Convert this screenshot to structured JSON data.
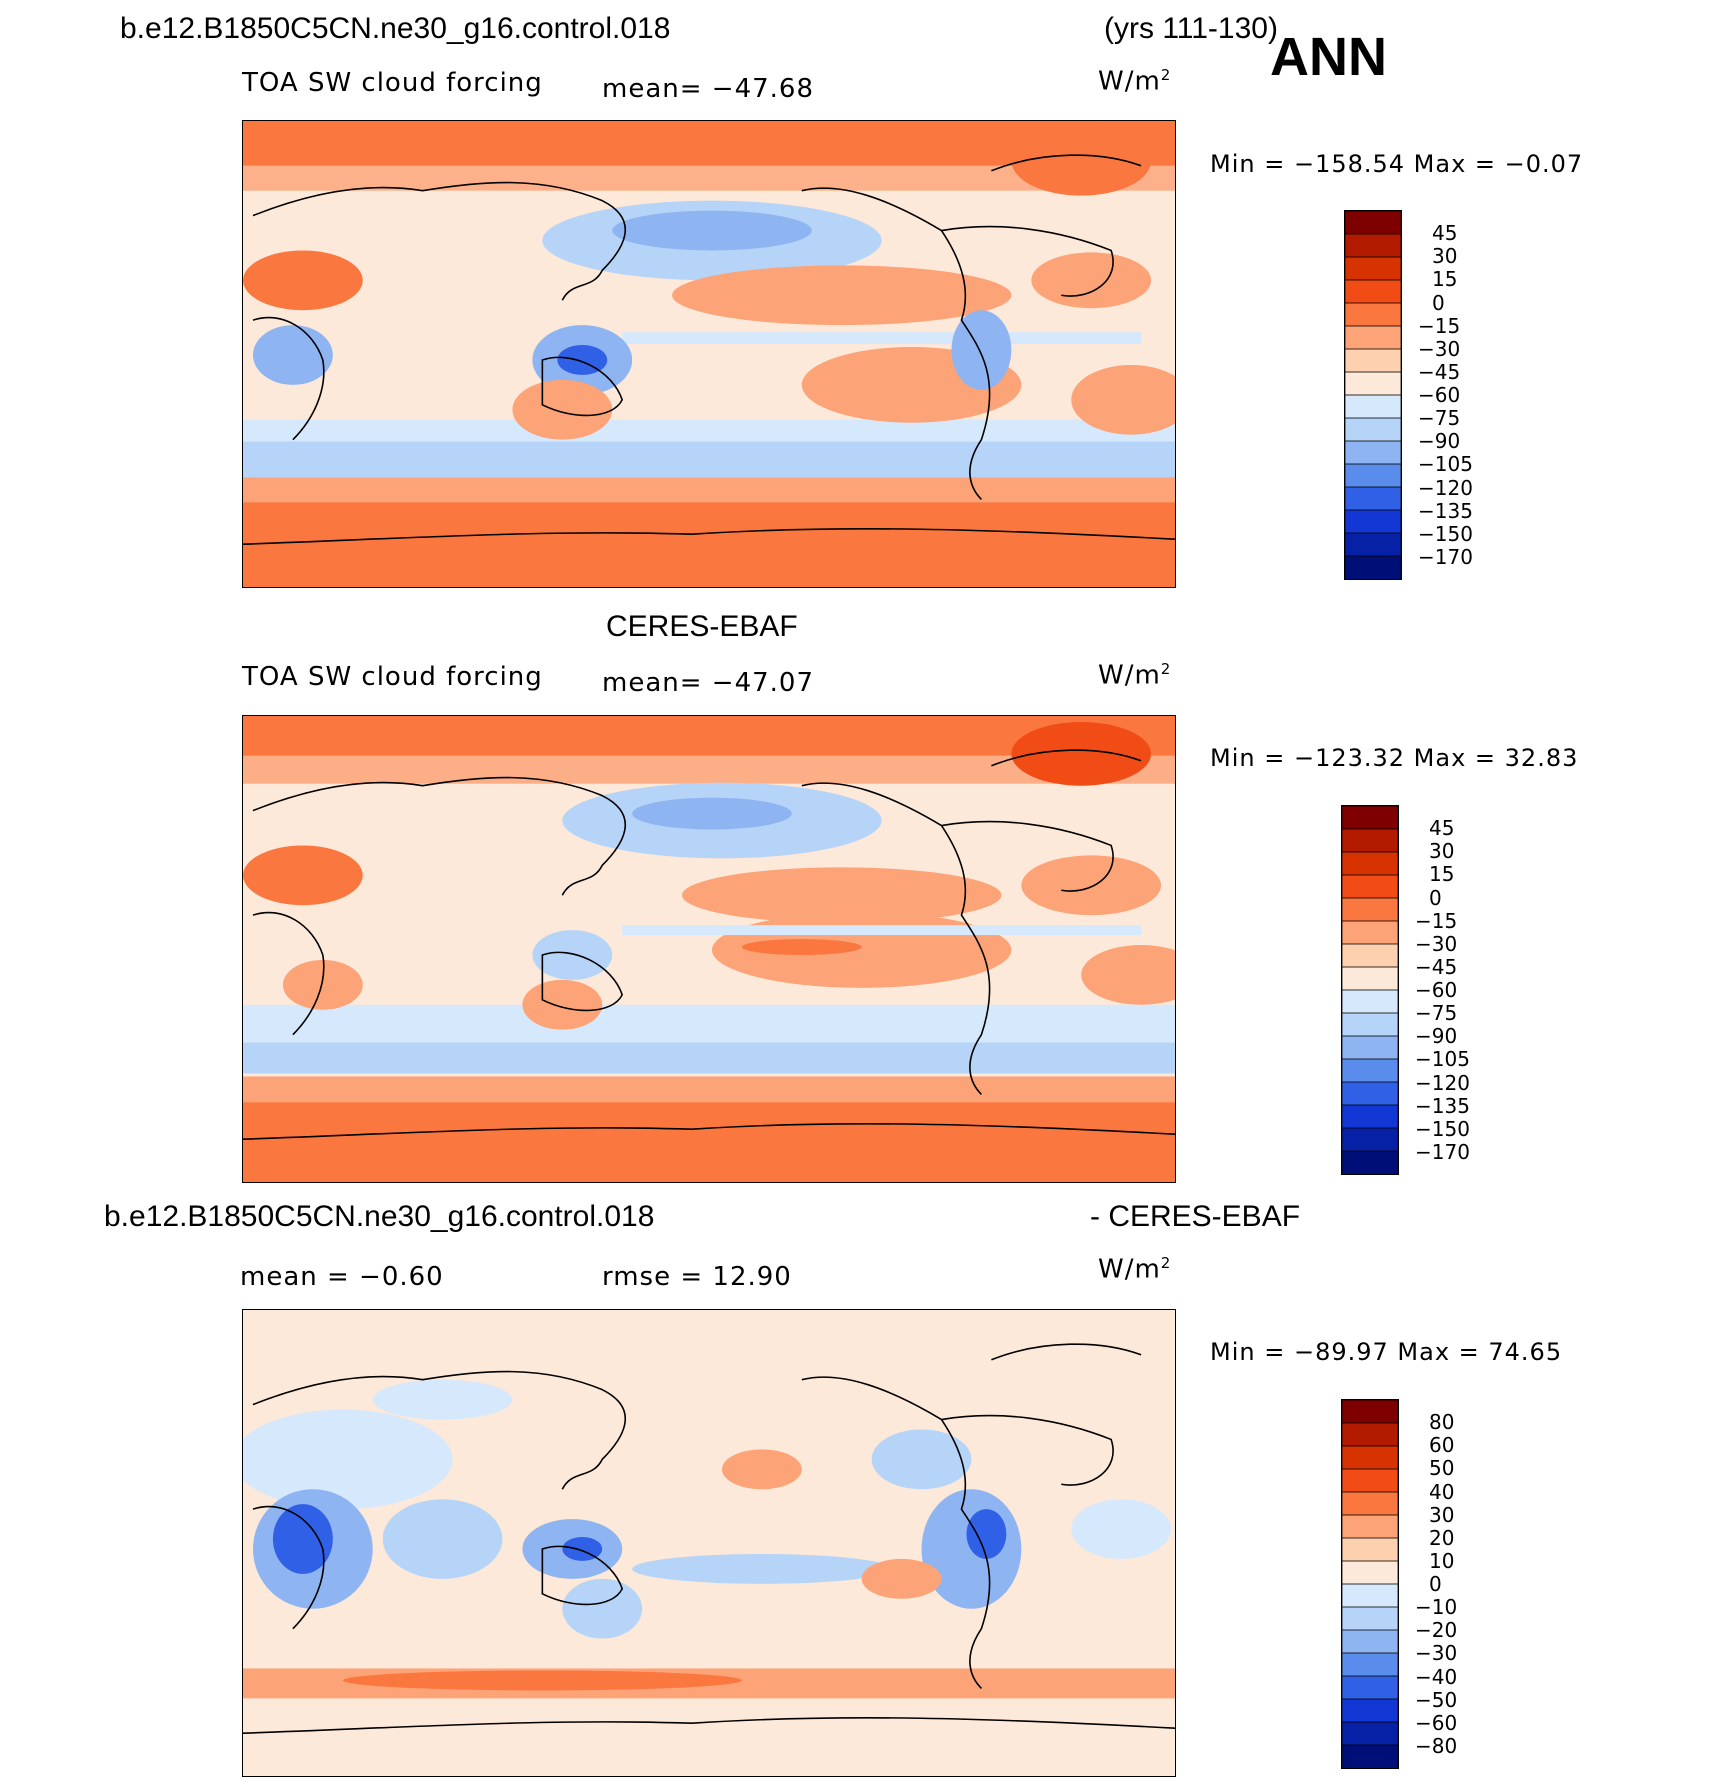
{
  "header": {
    "case_name": "b.e12.B1850C5CN.ne30_g16.control.018",
    "years": "(yrs 111-130)",
    "season": "ANN"
  },
  "panels": [
    {
      "id": "model",
      "title": "",
      "variable": "TOA SW cloud forcing",
      "stat": "mean=  −47.68",
      "units": "W/m",
      "units_exp": "2",
      "minmax": "Min  =  −158.54  Max  =    −0.07",
      "levels": [
        "45",
        "30",
        "15",
        "0",
        "−15",
        "−30",
        "−45",
        "−60",
        "−75",
        "−90",
        "−105",
        "−120",
        "−135",
        "−150",
        "−170"
      ],
      "colors": [
        "#7f0000",
        "#b21b00",
        "#d63300",
        "#f24c16",
        "#fa7740",
        "#fca377",
        "#fdd0b0",
        "#fde9d9",
        "#d6e8fb",
        "#b6d4f7",
        "#8eb4f2",
        "#5a8ceb",
        "#2f60e6",
        "#1337d4",
        "#0620a6",
        "#000f78"
      ]
    },
    {
      "id": "obs",
      "title": "CERES-EBAF",
      "variable": "TOA SW cloud forcing",
      "stat": "mean=  −47.07",
      "units": "W/m",
      "units_exp": "2",
      "minmax": "Min  =  −123.32  Max  =    32.83",
      "levels": [
        "45",
        "30",
        "15",
        "0",
        "−15",
        "−30",
        "−45",
        "−60",
        "−75",
        "−90",
        "−105",
        "−120",
        "−135",
        "−150",
        "−170"
      ],
      "colors": [
        "#7f0000",
        "#b21b00",
        "#d63300",
        "#f24c16",
        "#fa7740",
        "#fca377",
        "#fdd0b0",
        "#fde9d9",
        "#d6e8fb",
        "#b6d4f7",
        "#8eb4f2",
        "#5a8ceb",
        "#2f60e6",
        "#1337d4",
        "#0620a6",
        "#000f78"
      ]
    },
    {
      "id": "diff",
      "title_left": "b.e12.B1850C5CN.ne30_g16.control.018",
      "title_right": "- CERES-EBAF",
      "stat_mean": "mean  =    −0.60",
      "stat_rmse": "rmse  =    12.90",
      "units": "W/m",
      "units_exp": "2",
      "minmax": "Min  =  −89.97  Max  =    74.65",
      "levels": [
        "80",
        "60",
        "50",
        "40",
        "30",
        "20",
        "10",
        "0",
        "−10",
        "−20",
        "−30",
        "−40",
        "−50",
        "−60",
        "−80"
      ],
      "colors": [
        "#7f0000",
        "#b21b00",
        "#d63300",
        "#f24c16",
        "#fa7740",
        "#fca377",
        "#fdd0b0",
        "#fde9d9",
        "#d6e8fb",
        "#b6d4f7",
        "#8eb4f2",
        "#5a8ceb",
        "#2f60e6",
        "#1337d4",
        "#0620a6",
        "#000f78"
      ]
    }
  ],
  "map_style": {
    "model_base": "#fde9d9",
    "obs_base": "#fde9d9",
    "diff_base": "#fde9d9"
  }
}
